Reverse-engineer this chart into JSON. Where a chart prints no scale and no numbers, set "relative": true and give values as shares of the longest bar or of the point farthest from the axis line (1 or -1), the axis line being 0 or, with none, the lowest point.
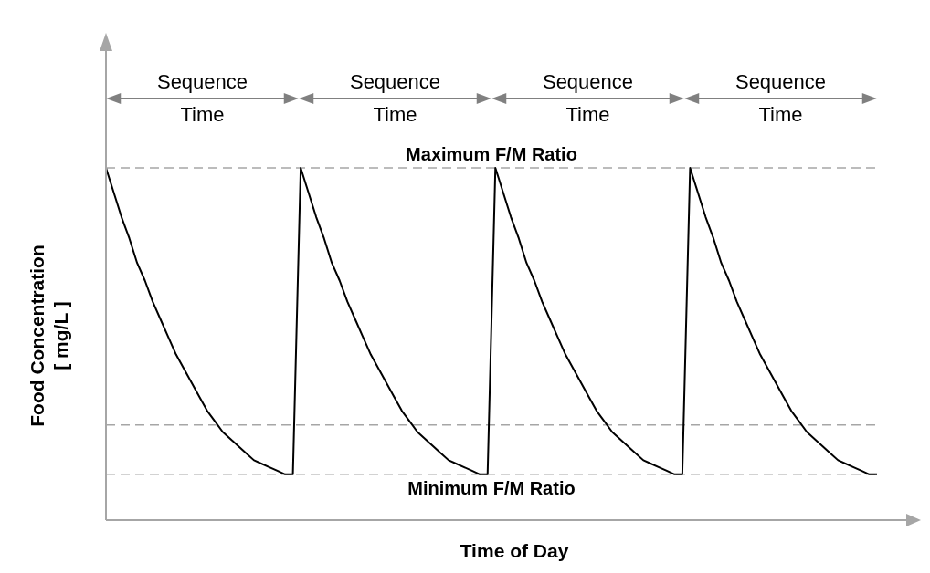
{
  "chart_data": {
    "type": "line",
    "xlabel": "Time of Day",
    "ylabel": "Food Concentration\n[ mg/L ]",
    "relative": true,
    "marker": "none",
    "color": "#000000",
    "categories": [
      null,
      null,
      null,
      null,
      null,
      null,
      null,
      null,
      null,
      null,
      null,
      null,
      null,
      null,
      null,
      null,
      null,
      null,
      null,
      null,
      null,
      null,
      null,
      null,
      null,
      null,
      null,
      null,
      null,
      null,
      null,
      null,
      null,
      null,
      null,
      null,
      null,
      null,
      null,
      null,
      null,
      null,
      null,
      null,
      null,
      null,
      null,
      null,
      null,
      null,
      null,
      null,
      null,
      null,
      null,
      null,
      null,
      null,
      null,
      null,
      null,
      null,
      null,
      null,
      null,
      null,
      null,
      null,
      null,
      null,
      null,
      null,
      null,
      null,
      null,
      null,
      null,
      null,
      null,
      null,
      null,
      null,
      null,
      null,
      null,
      null,
      null,
      null,
      null,
      null,
      null,
      null,
      null,
      null,
      null,
      null,
      null,
      null,
      null,
      null
    ],
    "values": [
      1.0,
      0.93,
      0.86,
      0.8,
      0.73,
      0.68,
      0.62,
      0.57,
      0.52,
      0.47,
      0.43,
      0.39,
      0.35,
      0.31,
      0.28,
      0.25,
      0.23,
      0.21,
      0.19,
      0.17,
      0.16,
      0.15,
      0.14,
      0.13,
      0.13,
      1.0,
      0.93,
      0.86,
      0.8,
      0.73,
      0.68,
      0.62,
      0.57,
      0.52,
      0.47,
      0.43,
      0.39,
      0.35,
      0.31,
      0.28,
      0.25,
      0.23,
      0.21,
      0.19,
      0.17,
      0.16,
      0.15,
      0.14,
      0.13,
      0.13,
      1.0,
      0.93,
      0.86,
      0.8,
      0.73,
      0.68,
      0.62,
      0.57,
      0.52,
      0.47,
      0.43,
      0.39,
      0.35,
      0.31,
      0.28,
      0.25,
      0.23,
      0.21,
      0.19,
      0.17,
      0.16,
      0.15,
      0.14,
      0.13,
      0.13,
      1.0,
      0.93,
      0.86,
      0.8,
      0.73,
      0.68,
      0.62,
      0.57,
      0.52,
      0.47,
      0.43,
      0.39,
      0.35,
      0.31,
      0.28,
      0.25,
      0.23,
      0.21,
      0.19,
      0.17,
      0.16,
      0.15,
      0.14,
      0.13,
      0.13
    ],
    "ref_lines": [
      {
        "axis": "y",
        "value": 1,
        "label": "Maximum F/M Ratio",
        "color": "#a6a6a6",
        "line_style": "dashed"
      },
      {
        "axis": "y",
        "value": 0.27,
        "color": "#a6a6a6",
        "line_style": "dashed"
      },
      {
        "axis": "y",
        "value": 0.13,
        "label": "Minimum F/M Ratio",
        "color": "#a6a6a6",
        "line_style": "dashed"
      }
    ],
    "annotations": [
      "Sequence Time",
      "Sequence Time",
      "Sequence Time",
      "Sequence Time"
    ]
  }
}
